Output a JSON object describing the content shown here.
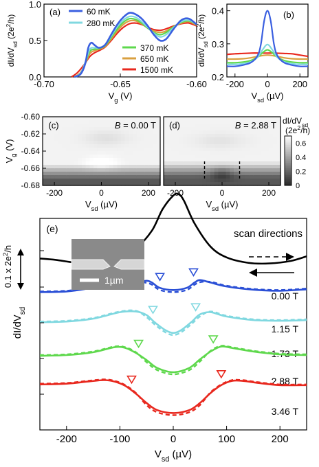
{
  "chart_data": [
    {
      "panel": "(a)",
      "type": "line",
      "xlabel": "V_g (V)",
      "ylabel": "dI/dV_sd (2e^2/h)",
      "xlim": [
        -0.7,
        -0.6
      ],
      "ylim": [
        0,
        1.0
      ],
      "xticks": [
        "-0.70",
        "-0.65",
        "-0.60"
      ],
      "yticks": [
        "0.0",
        "0.5",
        "1.0"
      ],
      "legend": [
        "60 mK",
        "280 mK",
        "370 mK",
        "650 mK",
        "1500 mK"
      ],
      "series": [
        {
          "name": "60 mK",
          "color": "#3a5fe0",
          "x": [
            -0.68,
            -0.676,
            -0.673,
            -0.671,
            -0.669,
            -0.667,
            -0.664,
            -0.66,
            -0.656,
            -0.652,
            -0.648,
            -0.644,
            -0.64,
            -0.636,
            -0.632,
            -0.628,
            -0.624,
            -0.62,
            -0.615,
            -0.61,
            -0.605,
            -0.6
          ],
          "y": [
            0.0,
            0.04,
            0.18,
            0.4,
            0.47,
            0.44,
            0.4,
            0.44,
            0.58,
            0.72,
            0.82,
            0.88,
            0.86,
            0.8,
            0.7,
            0.58,
            0.5,
            0.52,
            0.66,
            0.78,
            0.8,
            0.72
          ]
        },
        {
          "name": "280 mK",
          "color": "#80d8e0",
          "x": [
            -0.68,
            -0.676,
            -0.673,
            -0.67,
            -0.667,
            -0.664,
            -0.66,
            -0.656,
            -0.652,
            -0.648,
            -0.644,
            -0.64,
            -0.636,
            -0.632,
            -0.628,
            -0.624,
            -0.62,
            -0.615,
            -0.61,
            -0.605,
            -0.6
          ],
          "y": [
            0.0,
            0.05,
            0.2,
            0.38,
            0.4,
            0.4,
            0.44,
            0.56,
            0.69,
            0.78,
            0.83,
            0.82,
            0.76,
            0.68,
            0.6,
            0.55,
            0.58,
            0.68,
            0.76,
            0.78,
            0.72
          ]
        },
        {
          "name": "370 mK",
          "color": "#5ed84c",
          "x": [
            -0.68,
            -0.676,
            -0.673,
            -0.67,
            -0.667,
            -0.664,
            -0.66,
            -0.656,
            -0.652,
            -0.648,
            -0.644,
            -0.64,
            -0.636,
            -0.632,
            -0.628,
            -0.624,
            -0.62,
            -0.615,
            -0.61,
            -0.605,
            -0.6
          ],
          "y": [
            0.0,
            0.05,
            0.19,
            0.35,
            0.38,
            0.39,
            0.43,
            0.54,
            0.66,
            0.75,
            0.8,
            0.79,
            0.74,
            0.67,
            0.61,
            0.58,
            0.61,
            0.69,
            0.75,
            0.77,
            0.72
          ]
        },
        {
          "name": "650 mK",
          "color": "#d9a040",
          "x": [
            -0.68,
            -0.676,
            -0.673,
            -0.67,
            -0.667,
            -0.664,
            -0.66,
            -0.656,
            -0.652,
            -0.648,
            -0.644,
            -0.64,
            -0.636,
            -0.632,
            -0.628,
            -0.624,
            -0.62,
            -0.615,
            -0.61,
            -0.605,
            -0.6
          ],
          "y": [
            0.0,
            0.06,
            0.18,
            0.32,
            0.36,
            0.38,
            0.42,
            0.52,
            0.63,
            0.72,
            0.77,
            0.77,
            0.73,
            0.67,
            0.63,
            0.61,
            0.63,
            0.69,
            0.74,
            0.76,
            0.71
          ]
        },
        {
          "name": "1500 mK",
          "color": "#e8281e",
          "x": [
            -0.682,
            -0.678,
            -0.674,
            -0.67,
            -0.667,
            -0.664,
            -0.66,
            -0.656,
            -0.652,
            -0.648,
            -0.644,
            -0.64,
            -0.636,
            -0.632,
            -0.628,
            -0.624,
            -0.62,
            -0.615,
            -0.61,
            -0.605,
            -0.6
          ],
          "y": [
            0.0,
            0.06,
            0.16,
            0.28,
            0.33,
            0.36,
            0.41,
            0.5,
            0.6,
            0.68,
            0.73,
            0.74,
            0.72,
            0.68,
            0.65,
            0.64,
            0.66,
            0.7,
            0.73,
            0.74,
            0.7
          ]
        }
      ]
    },
    {
      "panel": "(b)",
      "type": "line",
      "xlabel": "V_sd (µV)",
      "ylabel": "dI/dV_sd (2e^2/h)",
      "xlim": [
        -250,
        250
      ],
      "ylim": [
        0.2,
        0.42
      ],
      "xticks": [
        "-200",
        "0",
        "200"
      ],
      "yticks": [
        "0.2",
        "0.3",
        "0.4"
      ],
      "series": [
        {
          "color": "#3a5fe0",
          "x": [
            -250,
            -200,
            -150,
            -100,
            -60,
            -40,
            -20,
            0,
            20,
            40,
            60,
            100,
            150,
            200,
            250
          ],
          "y": [
            0.232,
            0.232,
            0.236,
            0.244,
            0.265,
            0.3,
            0.37,
            0.4,
            0.37,
            0.3,
            0.265,
            0.244,
            0.236,
            0.232,
            0.232
          ]
        },
        {
          "color": "#80d8e0",
          "x": [
            -250,
            -200,
            -150,
            -100,
            -60,
            -30,
            0,
            30,
            60,
            100,
            150,
            200,
            250
          ],
          "y": [
            0.238,
            0.238,
            0.24,
            0.246,
            0.26,
            0.282,
            0.298,
            0.282,
            0.26,
            0.246,
            0.24,
            0.238,
            0.238
          ]
        },
        {
          "color": "#5ed84c",
          "x": [
            -250,
            -200,
            -150,
            -100,
            -60,
            -30,
            0,
            30,
            60,
            100,
            150,
            200,
            250
          ],
          "y": [
            0.243,
            0.243,
            0.245,
            0.25,
            0.26,
            0.273,
            0.282,
            0.273,
            0.26,
            0.25,
            0.245,
            0.243,
            0.243
          ]
        },
        {
          "color": "#d9a040",
          "x": [
            -250,
            -200,
            -150,
            -100,
            -50,
            0,
            50,
            100,
            150,
            200,
            250
          ],
          "y": [
            0.254,
            0.254,
            0.255,
            0.258,
            0.263,
            0.266,
            0.263,
            0.258,
            0.255,
            0.254,
            0.254
          ]
        },
        {
          "color": "#e8281e",
          "x": [
            -250,
            -200,
            -150,
            -100,
            -50,
            0,
            50,
            100,
            150,
            200,
            250
          ],
          "y": [
            0.268,
            0.27,
            0.271,
            0.272,
            0.272,
            0.272,
            0.272,
            0.271,
            0.27,
            0.266,
            0.262
          ]
        }
      ]
    },
    {
      "panel": "(c)",
      "type": "heatmap",
      "annotation": "B = 0.00 T",
      "xlabel": "V_sd (µV)",
      "ylabel": "V_g (V)",
      "xlim": [
        -250,
        250
      ],
      "ylim": [
        -0.68,
        -0.6
      ],
      "xticks": [
        "-200",
        "0",
        "200"
      ],
      "yticks": [
        "-0.60",
        "-0.62",
        "-0.64",
        "-0.66",
        "-0.68"
      ]
    },
    {
      "panel": "(d)",
      "type": "heatmap",
      "annotation": "B = 2.88 T",
      "xlabel": "V_sd (µV)",
      "xlim": [
        -250,
        250
      ],
      "ylim": [
        -0.68,
        -0.6
      ],
      "xticks": [
        "-200",
        "0",
        "200"
      ],
      "colorbar": {
        "label": "dI/dV_sd (2e^2/h)",
        "ticks": [
          "0",
          "0.2",
          "0.4",
          "0.6"
        ],
        "range": [
          0,
          0.7
        ]
      }
    },
    {
      "panel": "(e)",
      "type": "line",
      "xlabel": "V_sd (µV)",
      "ylabel": "dI/dV_sd",
      "scale_label": "0.1 x 2e^2/h",
      "xlim": [
        -250,
        250
      ],
      "xticks": [
        "-200",
        "-100",
        "0",
        "100",
        "200"
      ],
      "scan_label": "scan directions",
      "inset_scale": "1µm",
      "series": [
        {
          "name": "0.00 T",
          "color": "#000000",
          "marker_x": null,
          "x": [
            -250,
            -220,
            -180,
            -140,
            -100,
            -70,
            -40,
            -20,
            0,
            10,
            20,
            40,
            70,
            100,
            140,
            180,
            220,
            250
          ],
          "y": [
            0.082,
            0.078,
            0.07,
            0.072,
            0.088,
            0.11,
            0.16,
            0.22,
            0.258,
            0.262,
            0.244,
            0.18,
            0.115,
            0.085,
            0.07,
            0.068,
            0.075,
            0.088
          ]
        },
        {
          "name": "1.15 T",
          "color": "#2a4fd6",
          "marker_x": [
            -25,
            38
          ],
          "x": [
            -250,
            -200,
            -150,
            -100,
            -70,
            -50,
            -40,
            -25,
            0,
            25,
            40,
            50,
            70,
            100,
            150,
            200,
            250
          ],
          "y": [
            0.078,
            0.08,
            0.09,
            0.098,
            0.105,
            0.11,
            0.105,
            0.09,
            0.084,
            0.09,
            0.105,
            0.112,
            0.105,
            0.094,
            0.085,
            0.082,
            0.086
          ]
        },
        {
          "name": "1.73 T",
          "color": "#80d8e0",
          "marker_x": [
            -38,
            42
          ],
          "x": [
            -250,
            -200,
            -150,
            -100,
            -70,
            -50,
            -35,
            -15,
            0,
            15,
            35,
            50,
            70,
            100,
            150,
            200,
            250
          ],
          "y": [
            0.09,
            0.092,
            0.1,
            0.118,
            0.12,
            0.11,
            0.09,
            0.068,
            0.06,
            0.068,
            0.092,
            0.112,
            0.118,
            0.106,
            0.096,
            0.094,
            0.096
          ]
        },
        {
          "name": "2.88 T",
          "color": "#5ed84c",
          "marker_x": [
            -65,
            75
          ],
          "x": [
            -250,
            -200,
            -150,
            -110,
            -90,
            -70,
            -50,
            -30,
            0,
            30,
            50,
            70,
            90,
            110,
            150,
            200,
            250
          ],
          "y": [
            0.096,
            0.098,
            0.106,
            0.12,
            0.118,
            0.104,
            0.084,
            0.062,
            0.05,
            0.062,
            0.086,
            0.108,
            0.122,
            0.118,
            0.108,
            0.1,
            0.098
          ]
        },
        {
          "name": "3.46 T",
          "color": "#e8281e",
          "marker_x": [
            -78,
            90
          ],
          "x": [
            -250,
            -200,
            -160,
            -130,
            -110,
            -90,
            -70,
            -50,
            -30,
            0,
            30,
            50,
            70,
            90,
            110,
            130,
            160,
            200,
            250
          ],
          "y": [
            0.112,
            0.114,
            0.12,
            0.124,
            0.12,
            0.108,
            0.086,
            0.06,
            0.04,
            0.032,
            0.04,
            0.06,
            0.088,
            0.11,
            0.122,
            0.122,
            0.116,
            0.11,
            0.11
          ]
        }
      ]
    }
  ]
}
